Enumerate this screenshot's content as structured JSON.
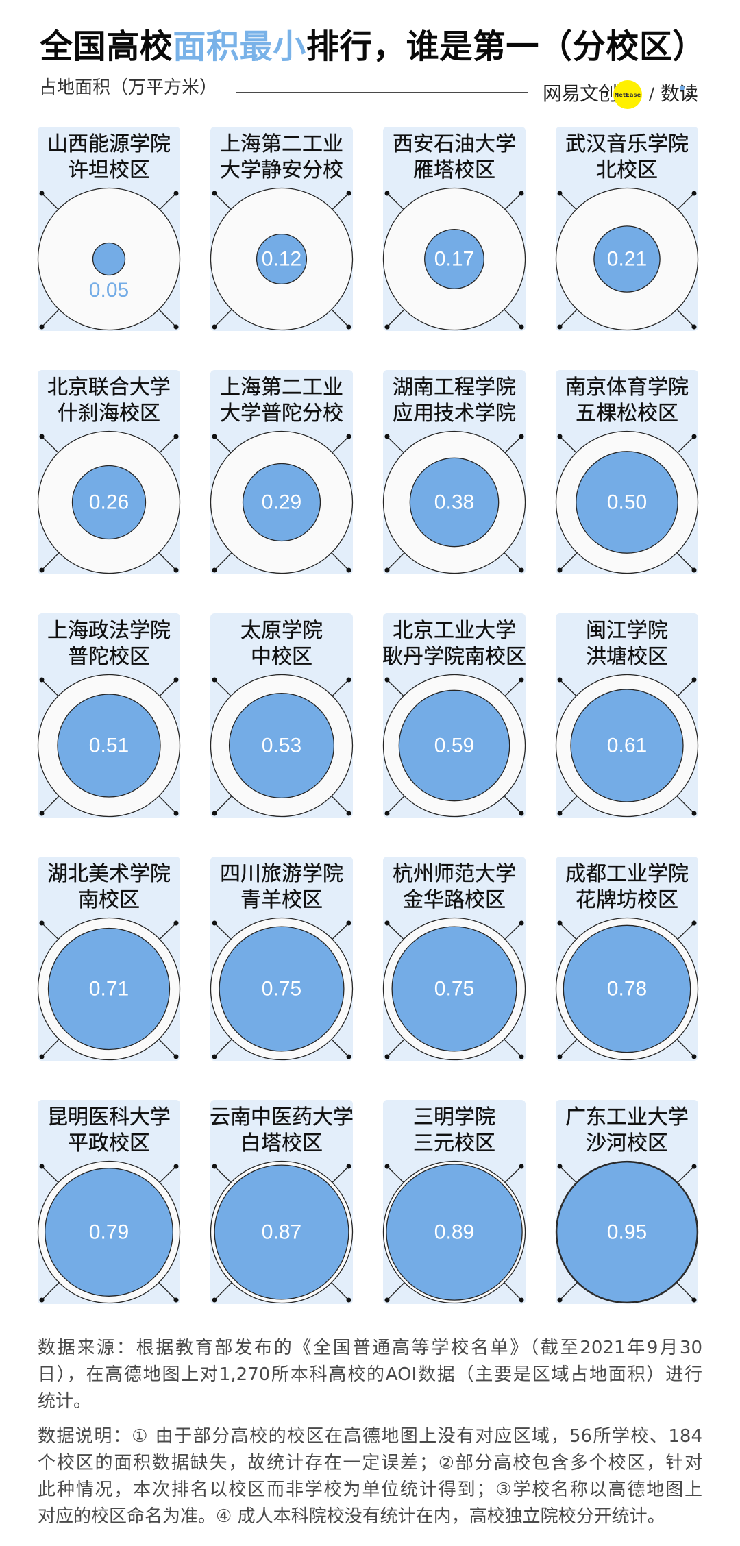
{
  "header": {
    "title_prefix": "全国高校",
    "title_highlight": "面积最小",
    "title_suffix": "排行，谁是第一（分校区）",
    "subtitle": "占地面积（万平方米）"
  },
  "logo": {
    "brand": "网易文创",
    "badge": "NetEase",
    "separator": "/",
    "column": "数读"
  },
  "colors": {
    "card_bg": "#E3EEFA",
    "bubble_blue": "#74ACE6",
    "outer_circle": "#FAFAFA",
    "stroke": "#262626",
    "title_highlight": "#79B2E8",
    "logo_yellow": "#FFF000"
  },
  "chart_data": {
    "type": "scatter",
    "title": "全国高校面积最小排行，谁是第一（分校区）",
    "subtitle": "占地面积（万平方米）",
    "xlabel": "",
    "ylabel": "占地面积（万平方米）",
    "encoding": "circle area proportional to value",
    "categories": [
      "山西能源学院许坦校区",
      "上海第二工业大学静安分校",
      "西安石油大学雁塔校区",
      "武汉音乐学院北校区",
      "北京联合大学什刹海校区",
      "上海第二工业大学普陀分校",
      "湖南工程学院应用技术学院",
      "南京体育学院五棵松校区",
      "上海政法学院普陀校区",
      "太原学院中校区",
      "北京工业大学耿丹学院南校区",
      "闽江学院洪塘校区",
      "湖北美术学院南校区",
      "四川旅游学院青羊校区",
      "杭州师范大学金华路校区",
      "成都工业学院花牌坊校区",
      "昆明医科大学平政校区",
      "云南中医药大学白塔校区",
      "三明学院三元校区",
      "广东工业大学沙河校区"
    ],
    "values": [
      0.05,
      0.12,
      0.17,
      0.21,
      0.26,
      0.29,
      0.38,
      0.5,
      0.51,
      0.53,
      0.59,
      0.61,
      0.71,
      0.75,
      0.75,
      0.78,
      0.79,
      0.87,
      0.89,
      0.95
    ],
    "items": [
      {
        "name_line1": "山西能源学院",
        "name_line2": "许坦校区",
        "value": 0.05,
        "value_label": "0.05"
      },
      {
        "name_line1": "上海第二工业",
        "name_line2": "大学静安分校",
        "value": 0.12,
        "value_label": "0.12"
      },
      {
        "name_line1": "西安石油大学",
        "name_line2": "雁塔校区",
        "value": 0.17,
        "value_label": "0.17"
      },
      {
        "name_line1": "武汉音乐学院",
        "name_line2": "北校区",
        "value": 0.21,
        "value_label": "0.21"
      },
      {
        "name_line1": "北京联合大学",
        "name_line2": "什刹海校区",
        "value": 0.26,
        "value_label": "0.26"
      },
      {
        "name_line1": "上海第二工业",
        "name_line2": "大学普陀分校",
        "value": 0.29,
        "value_label": "0.29"
      },
      {
        "name_line1": "湖南工程学院",
        "name_line2": "应用技术学院",
        "value": 0.38,
        "value_label": "0.38"
      },
      {
        "name_line1": "南京体育学院",
        "name_line2": "五棵松校区",
        "value": 0.5,
        "value_label": "0.50"
      },
      {
        "name_line1": "上海政法学院",
        "name_line2": "普陀校区",
        "value": 0.51,
        "value_label": "0.51"
      },
      {
        "name_line1": "太原学院",
        "name_line2": "中校区",
        "value": 0.53,
        "value_label": "0.53"
      },
      {
        "name_line1": "北京工业大学",
        "name_line2": "耿丹学院南校区",
        "value": 0.59,
        "value_label": "0.59"
      },
      {
        "name_line1": "闽江学院",
        "name_line2": "洪塘校区",
        "value": 0.61,
        "value_label": "0.61"
      },
      {
        "name_line1": "湖北美术学院",
        "name_line2": "南校区",
        "value": 0.71,
        "value_label": "0.71"
      },
      {
        "name_line1": "四川旅游学院",
        "name_line2": "青羊校区",
        "value": 0.75,
        "value_label": "0.75"
      },
      {
        "name_line1": "杭州师范大学",
        "name_line2": "金华路校区",
        "value": 0.75,
        "value_label": "0.75"
      },
      {
        "name_line1": "成都工业学院",
        "name_line2": "花牌坊校区",
        "value": 0.78,
        "value_label": "0.78"
      },
      {
        "name_line1": "昆明医科大学",
        "name_line2": "平政校区",
        "value": 0.79,
        "value_label": "0.79"
      },
      {
        "name_line1": "云南中医药大学",
        "name_line2": "白塔校区",
        "value": 0.87,
        "value_label": "0.87"
      },
      {
        "name_line1": "三明学院",
        "name_line2": "三元校区",
        "value": 0.89,
        "value_label": "0.89"
      },
      {
        "name_line1": "广东工业大学",
        "name_line2": "沙河校区",
        "value": 0.95,
        "value_label": "0.95"
      }
    ]
  },
  "notes": {
    "source_lines": [
      "数据来源：根据教育部发布的《全国普通高等学校名单》（截至2021年9月30",
      "日），在高德地图上对1,270所本科高校的AOI数据（主要是区域占地面积）进行",
      "统计。"
    ],
    "explanation_lines": [
      "数据说明：① 由于部分高校的校区在高德地图上没有对应区域，56所学校、184",
      "个校区的面积数据缺失，故统计存在一定误差；②部分高校包含多个校区，针对",
      "此种情况，本次排名以校区而非学校为单位统计得到；③学校名称以高德地图上",
      "对应的校区命名为准。④ 成人本科院校没有统计在内，高校独立院校分开统计。"
    ]
  }
}
